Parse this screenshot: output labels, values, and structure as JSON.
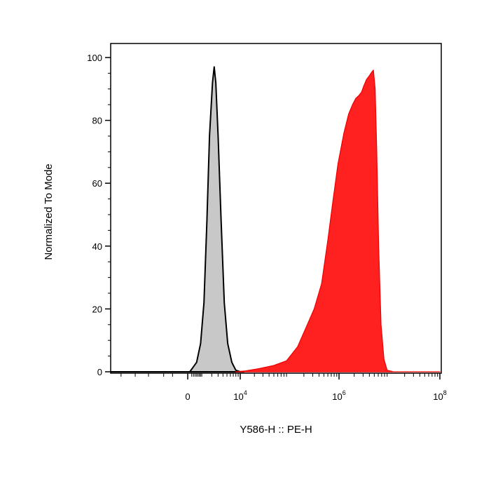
{
  "chart_data": {
    "type": "area",
    "xlabel": "Y586-H :: PE-H",
    "ylabel": "Normalized To Mode",
    "x_scale": "biexponential",
    "xlim": [
      -100000,
      100000000
    ],
    "ylim": [
      0,
      100
    ],
    "grid": false,
    "x_ticks": [
      {
        "value": 0,
        "label": "0",
        "exp": ""
      },
      {
        "value": 10000,
        "label": "10",
        "exp": "4"
      },
      {
        "value": 1000000,
        "label": "10",
        "exp": "6"
      },
      {
        "value": 100000000,
        "label": "10",
        "exp": "8"
      }
    ],
    "y_ticks": [
      {
        "value": 0,
        "label": "0"
      },
      {
        "value": 20,
        "label": "20"
      },
      {
        "value": 40,
        "label": "40"
      },
      {
        "value": 60,
        "label": "60"
      },
      {
        "value": 80,
        "label": "80"
      },
      {
        "value": 100,
        "label": "100"
      }
    ],
    "series": [
      {
        "fill": "#c8c8c8",
        "stroke": "#000000",
        "points": [
          [
            -50000,
            0
          ],
          [
            -5000,
            0
          ],
          [
            100,
            0
          ],
          [
            500,
            3
          ],
          [
            800,
            9
          ],
          [
            1100,
            22
          ],
          [
            1400,
            48
          ],
          [
            1700,
            75
          ],
          [
            2100,
            92
          ],
          [
            2350,
            97
          ],
          [
            2600,
            92
          ],
          [
            3000,
            75
          ],
          [
            3600,
            48
          ],
          [
            4300,
            22
          ],
          [
            5200,
            9
          ],
          [
            6500,
            3
          ],
          [
            8000,
            0.5
          ],
          [
            10000,
            0
          ],
          [
            12000,
            0
          ]
        ]
      },
      {
        "fill": "#ff2020",
        "stroke": "#ee0000",
        "points": [
          [
            8000,
            0
          ],
          [
            13000,
            0.3
          ],
          [
            25000,
            1
          ],
          [
            50000,
            2
          ],
          [
            90000,
            3.5
          ],
          [
            150000,
            8
          ],
          [
            220000,
            14
          ],
          [
            320000,
            20
          ],
          [
            450000,
            28
          ],
          [
            600000,
            42
          ],
          [
            750000,
            54
          ],
          [
            950000,
            66
          ],
          [
            1250000,
            76
          ],
          [
            1550000,
            82
          ],
          [
            1850000,
            85
          ],
          [
            2150000,
            87
          ],
          [
            2500000,
            88
          ],
          [
            2800000,
            89
          ],
          [
            3100000,
            91
          ],
          [
            3500000,
            93
          ],
          [
            3900000,
            94
          ],
          [
            4300000,
            95
          ],
          [
            4800000,
            96
          ],
          [
            5200000,
            90
          ],
          [
            5600000,
            70
          ],
          [
            6100000,
            40
          ],
          [
            6800000,
            15
          ],
          [
            7800000,
            4
          ],
          [
            9000000,
            0.5
          ],
          [
            12000000,
            0
          ],
          [
            100000000,
            0
          ]
        ]
      }
    ]
  }
}
